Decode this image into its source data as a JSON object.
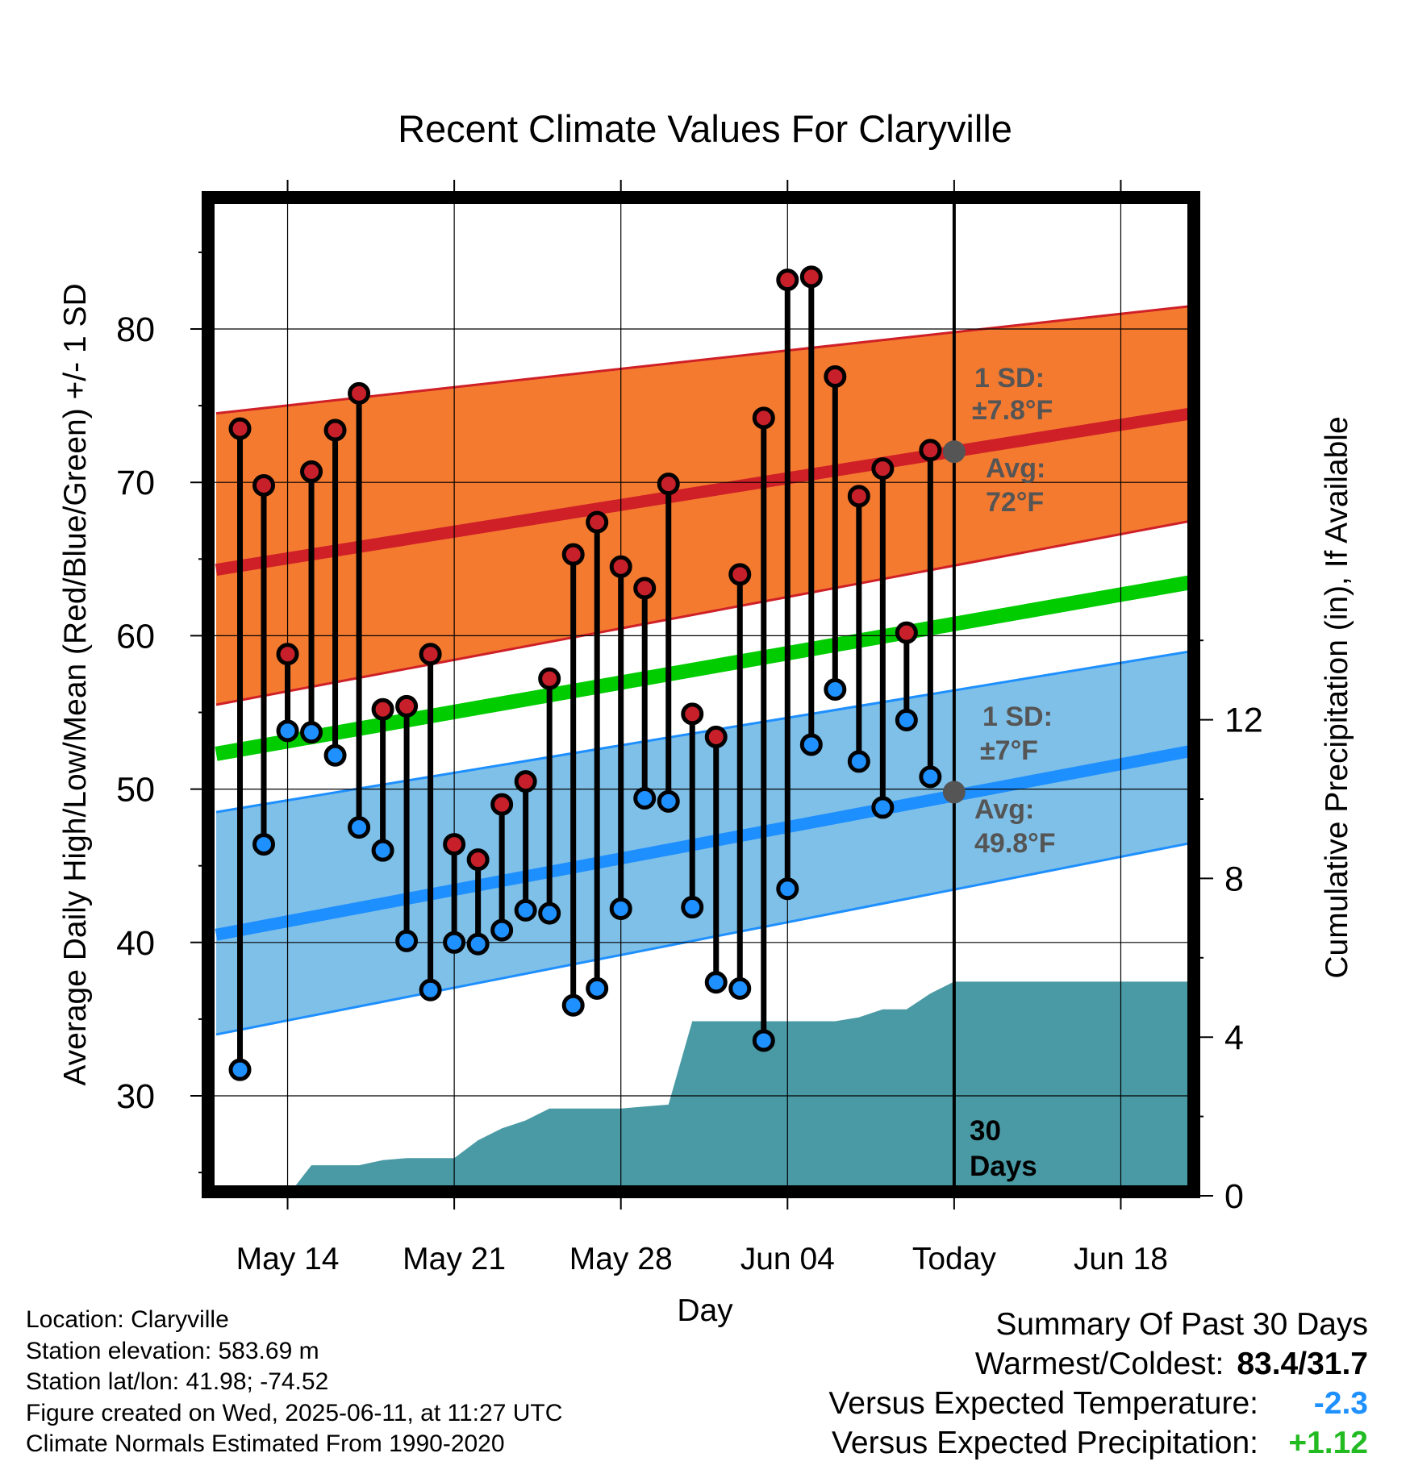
{
  "chart_data": {
    "type": "range",
    "title": "Recent Climate Values For Claryville",
    "xlabel": "Day",
    "ylabel": "Average Daily High/Low/Mean (Red/Blue/Green) +/- 1 SD",
    "y2label": "Cumulative Precipitation (in), If Available",
    "x_ticks": [
      "May 14",
      "May 21",
      "May 28",
      "Jun 04",
      "Today",
      "Jun 18"
    ],
    "ylim": [
      24.5,
      89.5
    ],
    "yticks": [
      30,
      40,
      50,
      60,
      70,
      80
    ],
    "y2lim": [
      0,
      24
    ],
    "y2ticks": [
      0,
      4,
      8,
      12
    ],
    "grid": true,
    "series": [
      {
        "name": "High",
        "color": "#c8202a",
        "values": [
          73.5,
          69.8,
          58.8,
          70.7,
          73.4,
          75.8,
          55.2,
          55.4,
          58.8,
          46.4,
          45.4,
          49.0,
          50.5,
          57.2,
          65.3,
          67.4,
          64.5,
          63.1,
          69.9,
          54.9,
          53.4,
          64.0,
          74.2,
          83.2,
          83.4,
          76.9,
          69.1,
          70.9,
          60.2,
          72.1
        ]
      },
      {
        "name": "Low",
        "color": "#1e90ff",
        "values": [
          31.7,
          46.4,
          53.8,
          53.7,
          52.2,
          47.5,
          46.0,
          40.1,
          36.9,
          40.0,
          39.9,
          40.8,
          42.1,
          41.9,
          35.9,
          37.0,
          42.2,
          49.4,
          49.2,
          42.3,
          37.4,
          37.0,
          33.6,
          43.5,
          52.9,
          56.5,
          51.8,
          48.8,
          54.5,
          50.8
        ]
      }
    ],
    "normals": {
      "high_avg": [
        64.3,
        74.5
      ],
      "high_sd_band": {
        "lower": [
          55.5,
          67.5
        ],
        "upper": [
          74.5,
          81.5
        ]
      },
      "mean_avg": [
        52.3,
        63.5
      ],
      "low_avg": [
        40.5,
        52.5
      ],
      "low_sd_band": {
        "lower": [
          34.0,
          46.5
        ],
        "upper": [
          48.5,
          59.0
        ]
      }
    },
    "precipitation_cumulative": [
      0.0,
      0.77,
      0.77,
      0.77,
      0.9,
      0.95,
      0.95,
      0.95,
      1.4,
      1.7,
      1.9,
      2.2,
      2.2,
      2.2,
      2.2,
      2.25,
      2.3,
      4.4,
      4.4,
      4.4,
      4.4,
      4.4,
      4.4,
      4.4,
      4.5,
      4.7,
      4.7,
      5.1,
      5.4,
      5.4,
      5.4,
      5.4,
      5.4,
      5.4,
      5.4,
      5.4,
      5.4,
      5.4,
      5.4,
      5.4
    ],
    "annotations": {
      "high_sd_title": "1 SD:",
      "high_sd_value": "±7.8°F",
      "high_avg_title": "Avg:",
      "high_avg_value": "72°F",
      "low_sd_title": "1 SD:",
      "low_sd_value": "±7°F",
      "low_avg_title": "Avg:",
      "low_avg_value": "49.8°F",
      "today_high": 72,
      "today_low": 49.8,
      "period_number": "30",
      "period_unit": "Days"
    },
    "colors": {
      "high_band": "#f47a30",
      "high_line": "#cf2027",
      "mean_line": "#00cc00",
      "low_band": "#7fc0e8",
      "low_line": "#1e8fff",
      "precip": "#4a9aa5",
      "annotation": "#555555"
    }
  },
  "footer": {
    "location": "Location: Claryville",
    "elevation": "Station elevation: 583.69 m",
    "latlon": "Station lat/lon: 41.98; -74.52",
    "created": "Figure created on Wed, 2025-06-11, at 11:27 UTC",
    "normals": "Climate Normals Estimated From 1990-2020"
  },
  "summary": {
    "title": "Summary Of Past 30 Days",
    "warmest_label": "Warmest/Coldest:",
    "warmest_value": "83.4/31.7",
    "temp_label": "Versus Expected Temperature:",
    "temp_value": "-2.3",
    "temp_color": "#1e90ff",
    "precip_label": "Versus Expected Precipitation:",
    "precip_value": "+1.12",
    "precip_color": "#22bb22"
  }
}
